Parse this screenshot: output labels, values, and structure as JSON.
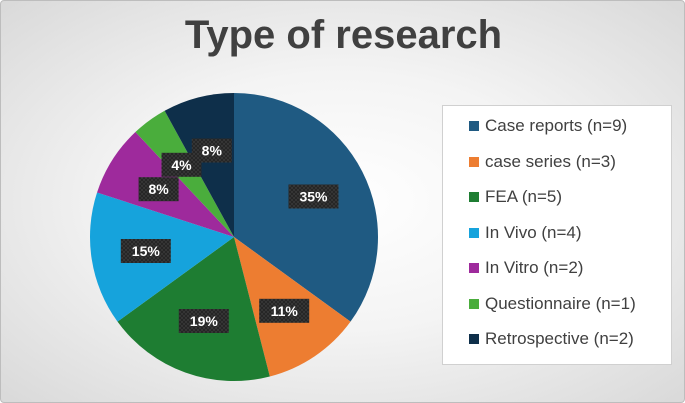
{
  "chart_data": {
    "type": "pie",
    "title": "Type of research",
    "slices": [
      {
        "label": "Case reports (n=9)",
        "value": 35,
        "data_label": "35%",
        "color": "#1f5a82"
      },
      {
        "label": "case series (n=3)",
        "value": 11,
        "data_label": "11%",
        "color": "#ed7d31"
      },
      {
        "label": "FEA (n=5)",
        "value": 19,
        "data_label": "19%",
        "color": "#1e7d32"
      },
      {
        "label": "In Vivo (n=4)",
        "value": 15,
        "data_label": "15%",
        "color": "#16a3dc"
      },
      {
        "label": "In Vitro (n=2)",
        "value": 8,
        "data_label": "8%",
        "color": "#9e2a9c"
      },
      {
        "label": "Questionnaire (n=1)",
        "value": 4,
        "data_label": "4%",
        "color": "#4aad3c"
      },
      {
        "label": "Retrospective (n=2)",
        "value": 8,
        "data_label": "8%",
        "color": "#0e2f4a"
      }
    ],
    "legend_position": "right",
    "start_angle_deg": 0,
    "direction": "clockwise"
  }
}
